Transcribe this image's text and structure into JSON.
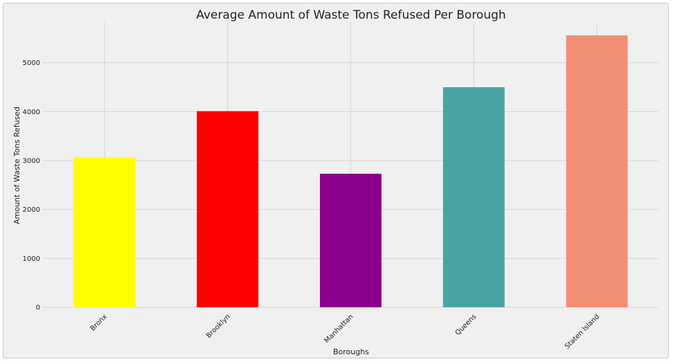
{
  "chart_data": {
    "type": "bar",
    "title": "Average Amount of Waste Tons Refused Per Borough",
    "xlabel": "Boroughs",
    "ylabel": "Amount of Waste Tons Refused",
    "categories": [
      "Bronx",
      "Brooklyn",
      "Manhattan",
      "Queens",
      "Staten Island"
    ],
    "values": [
      3060,
      4010,
      2730,
      4500,
      5560
    ],
    "colors": [
      "#ffff00",
      "#ff0000",
      "#8b008b",
      "#4aa3a3",
      "#f28e73"
    ],
    "yticks": [
      0,
      1000,
      2000,
      3000,
      4000,
      5000
    ],
    "ylim": [
      0,
      5830
    ],
    "grid": true,
    "background": "#f0f0f0"
  }
}
